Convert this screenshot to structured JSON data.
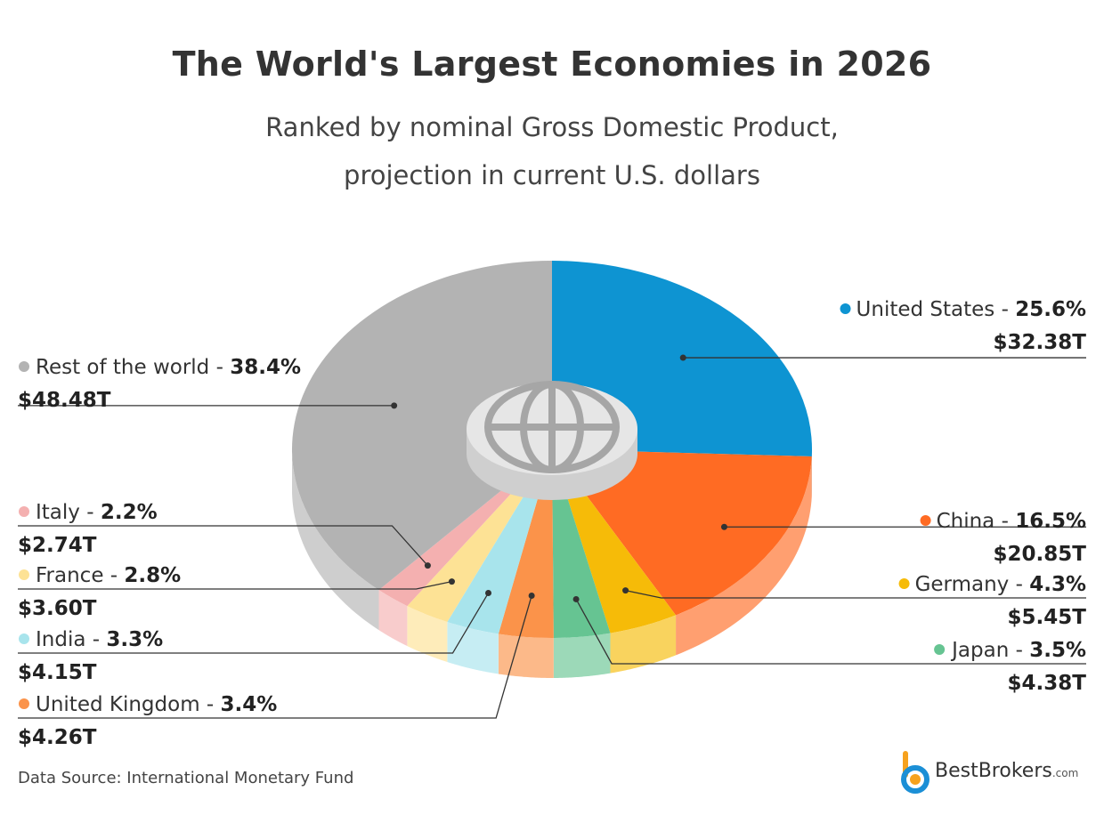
{
  "chart_data": {
    "type": "pie",
    "title": "The World's Largest Economies in 2026",
    "subtitle_lines": [
      "Ranked by nominal Gross Domestic Product,",
      "projection in current U.S. dollars"
    ],
    "slices": [
      {
        "name": "United States",
        "percent": 25.6,
        "value": "$32.38T",
        "color": "#0e94d2",
        "pct_label": "25.6%"
      },
      {
        "name": "China",
        "percent": 16.5,
        "value": "$20.85T",
        "color": "#ff6b23",
        "pct_label": "16.5%"
      },
      {
        "name": "Germany",
        "percent": 4.3,
        "value": "$5.45T",
        "color": "#f6bb08",
        "pct_label": "4.3%"
      },
      {
        "name": "Japan",
        "percent": 3.5,
        "value": "$4.38T",
        "color": "#66c492",
        "pct_label": "3.5%"
      },
      {
        "name": "United Kingdom",
        "percent": 3.4,
        "value": "$4.26T",
        "color": "#fb934a",
        "pct_label": "3.4%"
      },
      {
        "name": "India",
        "percent": 3.3,
        "value": "$4.15T",
        "color": "#a8e4ec",
        "pct_label": "3.3%"
      },
      {
        "name": "France",
        "percent": 2.8,
        "value": "$3.60T",
        "color": "#fde295",
        "pct_label": "2.8%"
      },
      {
        "name": "Italy",
        "percent": 2.2,
        "value": "$2.74T",
        "color": "#f4b0b0",
        "pct_label": "2.2%"
      },
      {
        "name": "Rest of the world",
        "percent": 38.4,
        "value": "$48.48T",
        "color": "#b3b3b3",
        "pct_label": "38.4%"
      }
    ]
  },
  "source": "Data Source: International Monetary Fund",
  "brand": {
    "name": "BestBrokers",
    "suffix": ".com"
  },
  "center_icon": "globe-icon"
}
